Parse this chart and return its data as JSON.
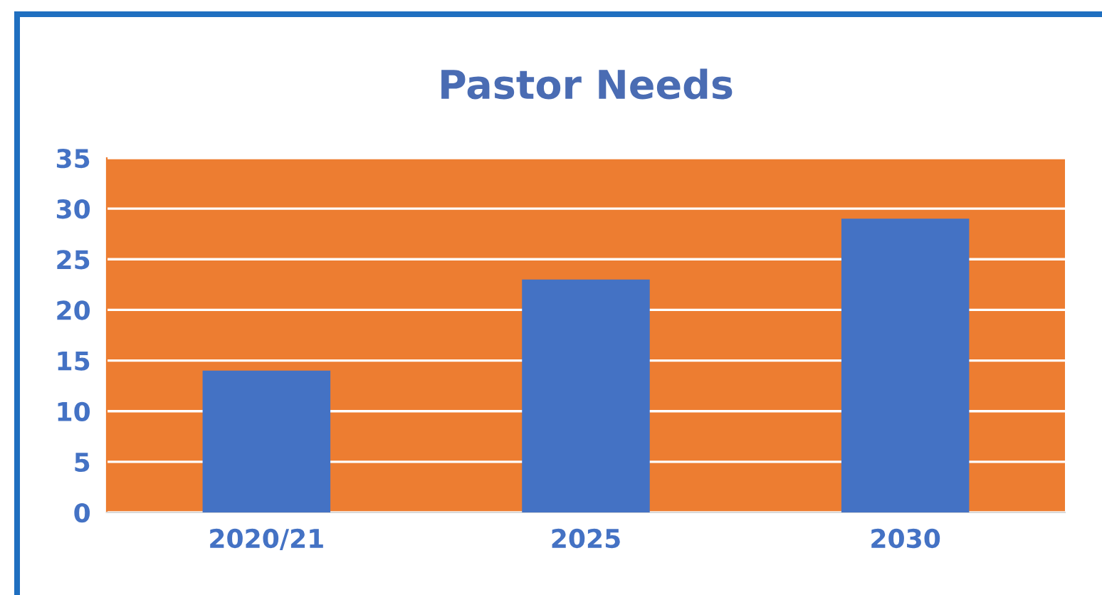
{
  "chart_data": {
    "type": "bar",
    "title": "Pastor Needs",
    "categories": [
      "2020/21",
      "2025",
      "2030"
    ],
    "values": [
      14,
      23,
      29
    ],
    "color": "#4472c4",
    "ylim": [
      0,
      35
    ],
    "yticks": [
      0,
      5,
      10,
      15,
      20,
      25,
      30,
      35
    ],
    "grid": "y"
  }
}
